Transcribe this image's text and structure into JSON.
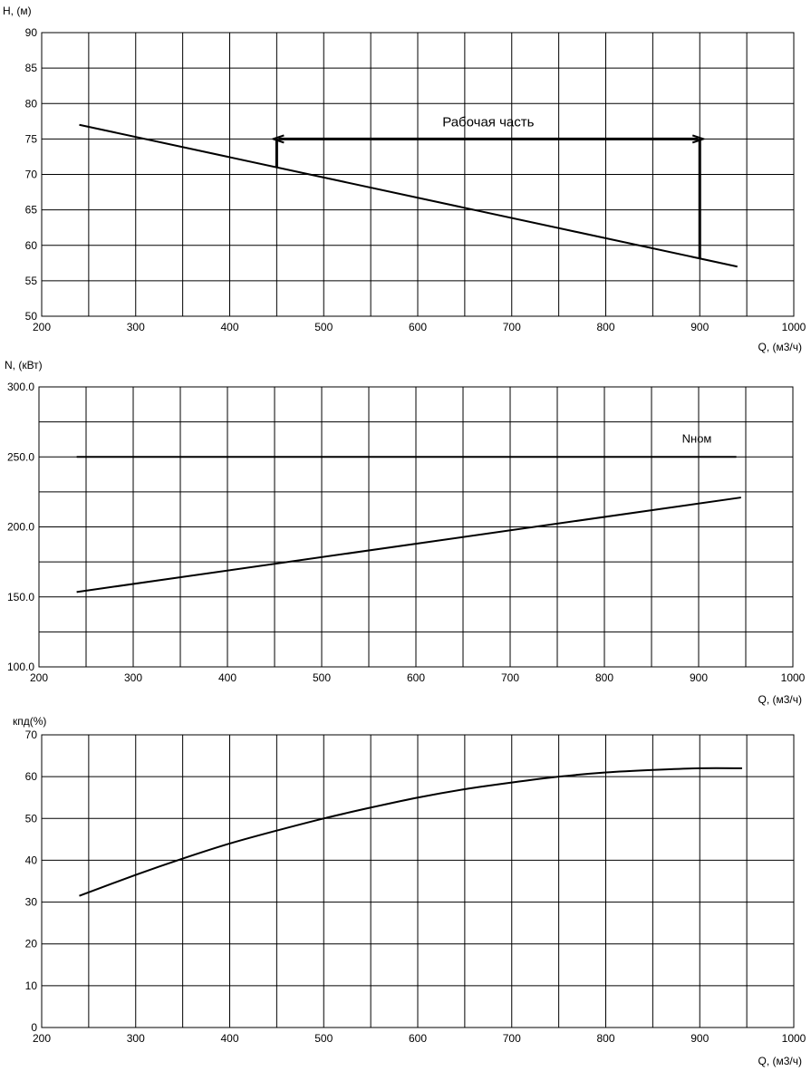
{
  "chart_data": [
    {
      "type": "line",
      "ylabel": "H, (м)",
      "xlabel": "Q, (м3/ч)",
      "xlim": [
        200,
        1000
      ],
      "ylim": [
        50,
        90
      ],
      "xticks": [
        "200",
        "300",
        "400",
        "500",
        "600",
        "700",
        "800",
        "900",
        "1000"
      ],
      "yticks": [
        "50",
        "55",
        "60",
        "65",
        "70",
        "75",
        "80",
        "85",
        "90"
      ],
      "grid": true,
      "series": [
        {
          "x": [
            240,
            940
          ],
          "y": [
            77,
            57
          ]
        }
      ],
      "annotations": [
        {
          "text": "Рабочая часть",
          "x_start": 450,
          "x_end": 900,
          "y": 75
        }
      ]
    },
    {
      "type": "line",
      "ylabel": "N, (кВт)",
      "xlabel": "Q, (м3/ч)",
      "xlim": [
        200,
        1000
      ],
      "ylim": [
        100,
        300
      ],
      "xticks": [
        "200",
        "300",
        "400",
        "500",
        "600",
        "700",
        "800",
        "900",
        "1000"
      ],
      "yticks": [
        "100.0",
        "150.0",
        "200.0",
        "250.0",
        "300.0"
      ],
      "grid": true,
      "series": [
        {
          "name": "Nном",
          "x": [
            240,
            940
          ],
          "y": [
            250,
            250
          ]
        },
        {
          "x": [
            240,
            945
          ],
          "y": [
            153.5,
            221
          ]
        }
      ]
    },
    {
      "type": "line",
      "ylabel": "кпд(%)",
      "xlabel": "Q, (м3/ч)",
      "xlim": [
        200,
        1000
      ],
      "ylim": [
        0,
        70
      ],
      "xticks": [
        "200",
        "300",
        "400",
        "500",
        "600",
        "700",
        "800",
        "900",
        "1000"
      ],
      "yticks": [
        "0",
        "10",
        "20",
        "30",
        "40",
        "50",
        "60",
        "70"
      ],
      "grid": true,
      "series": [
        {
          "x": [
            240,
            300,
            350,
            400,
            450,
            500,
            550,
            600,
            650,
            700,
            750,
            800,
            850,
            900,
            945
          ],
          "y": [
            31.5,
            36.5,
            40.4,
            44,
            47.1,
            50,
            52.6,
            55,
            57,
            58.6,
            60,
            61,
            61.6,
            62,
            62
          ]
        }
      ]
    }
  ]
}
